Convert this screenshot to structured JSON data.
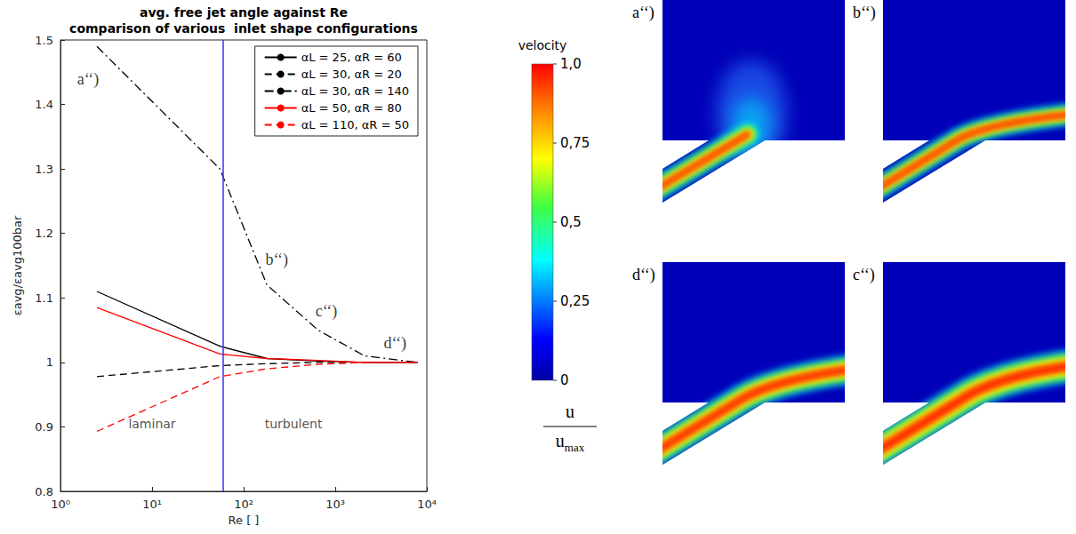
{
  "chart_data": {
    "type": "line",
    "title": "avg. free jet angle against Re",
    "subtitle": "comparison of various  inlet shape configurations",
    "x_label": "Re [ ]",
    "y_label": "εavg/εavg100bar",
    "x": [
      2.5,
      55,
      180,
      650,
      2100,
      8000
    ],
    "series": [
      {
        "name": "αL = 25, αR = 60",
        "color": "#000000",
        "line_style": "solid",
        "values": [
          1.11,
          1.025,
          1.006,
          1.002,
          1.0,
          1.0
        ]
      },
      {
        "name": "αL = 30, αR = 20",
        "color": "#000000",
        "line_style": "dashed",
        "values": [
          0.978,
          0.995,
          0.998,
          1.0,
          1.0,
          1.0
        ]
      },
      {
        "name": "αL = 30, αR = 140",
        "color": "#000000",
        "line_style": "dashdot",
        "values": [
          1.49,
          1.3,
          1.12,
          1.05,
          1.01,
          1.0
        ]
      },
      {
        "name": "αL = 50, αR = 80",
        "color": "#ff0000",
        "line_style": "solid",
        "values": [
          1.085,
          1.013,
          1.006,
          1.003,
          1.0,
          1.0
        ]
      },
      {
        "name": "αL = 110, αR = 50",
        "color": "#ff0000",
        "line_style": "dashed",
        "values": [
          0.893,
          0.978,
          0.99,
          0.997,
          1.0,
          1.0
        ]
      }
    ],
    "log": "x",
    "xlim": [
      1,
      10000
    ],
    "xticks": [
      {
        "value": 1,
        "label": "10⁰"
      },
      {
        "value": 10,
        "label": "10¹"
      },
      {
        "value": 100,
        "label": "10²"
      },
      {
        "value": 1000,
        "label": "10³"
      },
      {
        "value": 10000,
        "label": "10⁴"
      }
    ],
    "ylim": [
      0.8,
      1.5
    ],
    "yticks": [
      0.8,
      0.9,
      1,
      1.1,
      1.2,
      1.3,
      1.4,
      1.5
    ],
    "grid": false,
    "legend": "upper right",
    "divider": {
      "x": 60,
      "color": "#3232ff"
    },
    "annotations": [
      {
        "text": "a‘‘)",
        "x": 2.0,
        "y": 1.44
      },
      {
        "text": "b‘‘)",
        "x": 230,
        "y": 1.16
      },
      {
        "text": "c‘‘)",
        "x": 800,
        "y": 1.08
      },
      {
        "text": "d‘‘)",
        "x": 4500,
        "y": 1.03
      }
    ],
    "regions": [
      {
        "text": "laminar",
        "x": 10,
        "y": 0.905
      },
      {
        "text": "turbulent",
        "x": 350,
        "y": 0.905
      }
    ]
  },
  "colorbar": {
    "title": "velocity",
    "range": [
      0,
      1
    ],
    "ticks": [
      {
        "value": 1,
        "label": "1,0"
      },
      {
        "value": 0.75,
        "label": "0,75"
      },
      {
        "value": 0.5,
        "label": "0,5"
      },
      {
        "value": 0.25,
        "label": "0,25"
      },
      0
    ],
    "numerator": "u",
    "denominator": {
      "text": "u",
      "subscript": "max"
    }
  },
  "panels": [
    "a‘‘)",
    "b‘‘)",
    "d‘‘)",
    "c‘‘)"
  ]
}
